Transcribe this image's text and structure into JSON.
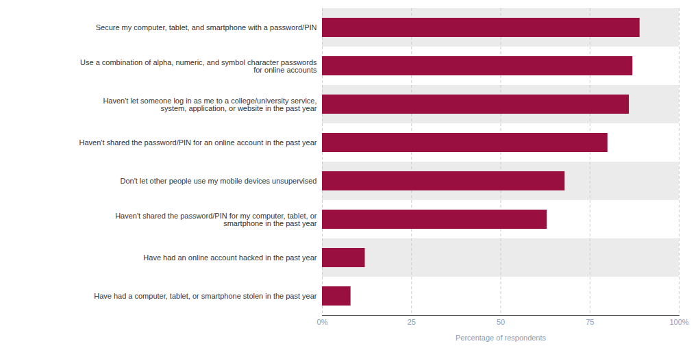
{
  "chart_data": {
    "type": "bar",
    "orientation": "horizontal",
    "categories": [
      "Have had a computer, tablet, or smartphone stolen in the past year",
      "Have had an online account hacked in the past year",
      "Haven't shared the password/PIN for my computer, tablet, or\nsmartphone in the past year",
      "Don't let other people use my mobile devices unsupervised",
      "Haven't shared the password/PIN for an online account in the past year",
      "Haven't let someone log in as me to a college/university service,\nsystem, application, or website in the past year",
      "Use a combination of alpha, numeric, and symbol character passwords\nfor online accounts",
      "Secure my computer, tablet, and smartphone with a password/PIN"
    ],
    "values": [
      8,
      12,
      63,
      68,
      80,
      86,
      87,
      89
    ],
    "color": "#991040",
    "xlabel": "Percentage of respondents",
    "xlim": [
      0,
      100
    ],
    "xticks": [
      {
        "value": 0,
        "label": "0%"
      },
      25,
      50,
      75,
      {
        "value": 100,
        "label": "100%"
      }
    ],
    "grid": true
  }
}
